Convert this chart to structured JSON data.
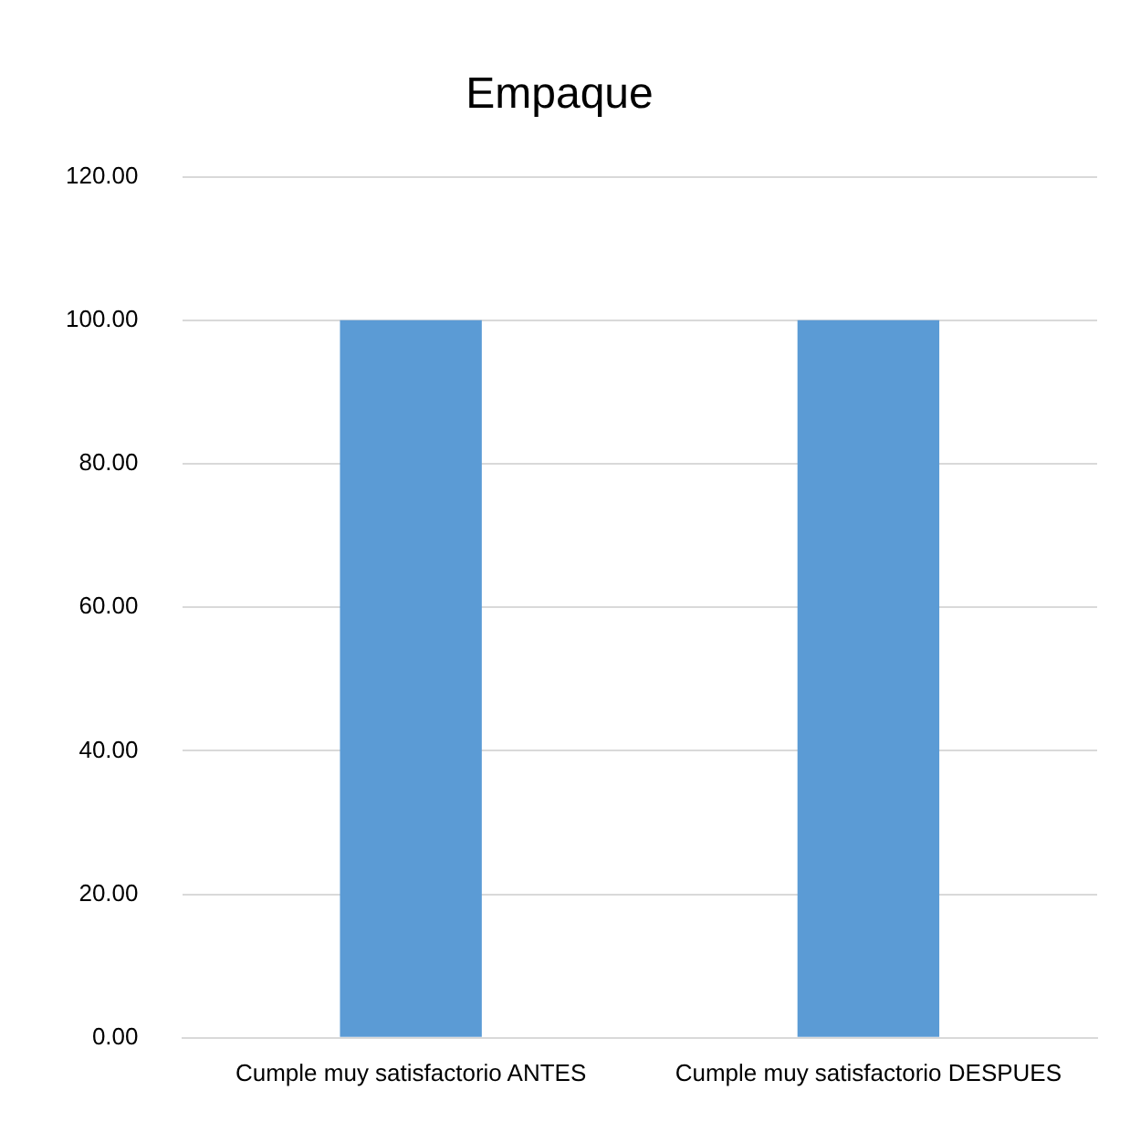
{
  "chart_data": {
    "type": "bar",
    "title": "Empaque",
    "categories": [
      "Cumple muy satisfactorio ANTES",
      "Cumple muy satisfactorio DESPUES"
    ],
    "values": [
      100,
      100
    ],
    "color": "#5b9bd5",
    "ylim": [
      0,
      120
    ],
    "yticks": [
      {
        "value": 0,
        "label": "0.00"
      },
      {
        "value": 20,
        "label": "20.00"
      },
      {
        "value": 40,
        "label": "40.00"
      },
      {
        "value": 60,
        "label": "60.00"
      },
      {
        "value": 80,
        "label": "80.00"
      },
      {
        "value": 100,
        "label": "100.00"
      },
      {
        "value": 120,
        "label": "120.00"
      }
    ],
    "grid": "y"
  }
}
